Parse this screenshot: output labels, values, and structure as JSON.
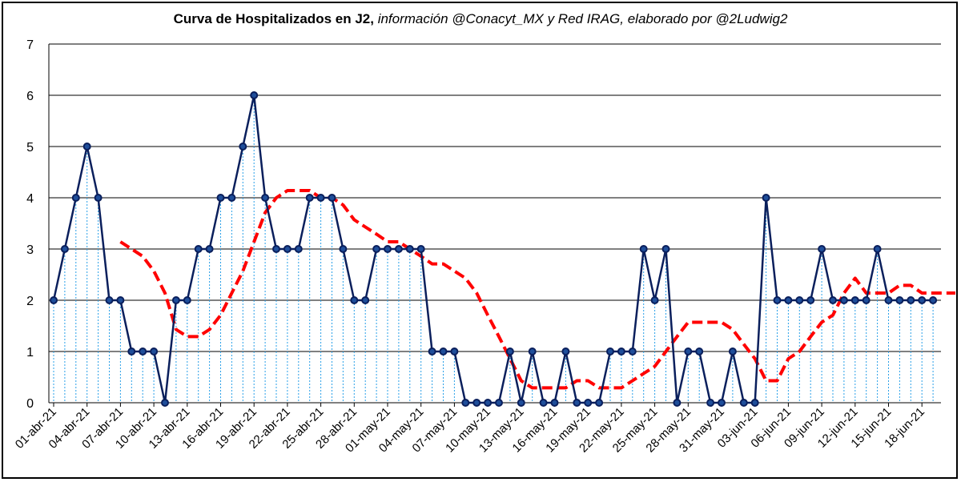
{
  "title_bold": "Curva de Hospitalizados en J2,",
  "title_italic": "información @Conacyt_MX y Red IRAG, elaborado por @2Ludwig2",
  "colors": {
    "series": "#0a1f5c",
    "marker_fill": "#1f4e9a",
    "average": "#ff0000",
    "drop_lines": "#2aa0e8",
    "grid": "#000000"
  },
  "chart_data": {
    "type": "line",
    "title": "Curva de Hospitalizados en J2, información @Conacyt_MX y Red IRAG, elaborado por @2Ludwig2",
    "xlabel": "",
    "ylabel": "",
    "ylim": [
      0,
      7
    ],
    "yticks": [
      0,
      1,
      2,
      3,
      4,
      5,
      6,
      7
    ],
    "grid": true,
    "legend": "none",
    "x_tick_labels": [
      "01-abr-21",
      "04-abr-21",
      "07-abr-21",
      "10-abr-21",
      "13-abr-21",
      "16-abr-21",
      "19-abr-21",
      "22-abr-21",
      "25-abr-21",
      "28-abr-21",
      "01-may-21",
      "04-may-21",
      "07-may-21",
      "10-may-21",
      "13-may-21",
      "16-may-21",
      "19-may-21",
      "22-may-21",
      "25-may-21",
      "28-may-21",
      "31-may-21",
      "03-jun-21",
      "06-jun-21",
      "09-jun-21",
      "12-jun-21",
      "15-jun-21",
      "18-jun-21"
    ],
    "x_start": "2021-04-01",
    "x_end": "2021-06-20",
    "series": [
      {
        "values": [
          2,
          3,
          4,
          5,
          4,
          2,
          2,
          1,
          1,
          1,
          0,
          2,
          2,
          3,
          3,
          4,
          4,
          5,
          6,
          4,
          3,
          3,
          3,
          4,
          4,
          4,
          3,
          2,
          2,
          3,
          3,
          3,
          3,
          3,
          1,
          1,
          1,
          0,
          0,
          0,
          0,
          1,
          0,
          1,
          0,
          0,
          1,
          0,
          0,
          0,
          1,
          1,
          1,
          3,
          2,
          3,
          0,
          1,
          1,
          0,
          0,
          1,
          0,
          0,
          4,
          2,
          2,
          2,
          2,
          3,
          2,
          2,
          2,
          2,
          3,
          2,
          2,
          2,
          2,
          2
        ]
      },
      {
        "style": "dashed",
        "start": "2021-04-07",
        "values": [
          3.14,
          3.0,
          2.86,
          2.57,
          2.14,
          1.43,
          1.29,
          1.29,
          1.43,
          1.71,
          2.14,
          2.57,
          3.14,
          3.71,
          4.0,
          4.14,
          4.14,
          4.14,
          4.0,
          4.0,
          3.86,
          3.57,
          3.43,
          3.29,
          3.14,
          3.14,
          3.0,
          2.86,
          2.71,
          2.71,
          2.57,
          2.43,
          2.14,
          1.71,
          1.29,
          0.86,
          0.43,
          0.29,
          0.29,
          0.29,
          0.29,
          0.43,
          0.43,
          0.29,
          0.29,
          0.29,
          0.43,
          0.57,
          0.71,
          1.0,
          1.29,
          1.57,
          1.57,
          1.57,
          1.57,
          1.43,
          1.14,
          0.86,
          0.43,
          0.43,
          0.86,
          1.0,
          1.29,
          1.57,
          1.71,
          2.14,
          2.43,
          2.14,
          2.14,
          2.14,
          2.29,
          2.29,
          2.14,
          2.14,
          2.14,
          2.14
        ]
      }
    ]
  }
}
